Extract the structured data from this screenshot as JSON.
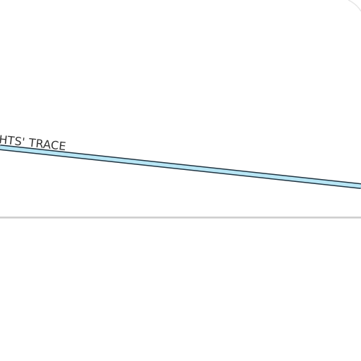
{
  "map": {
    "background": "#ffffff",
    "roads": [
      {
        "name_label": "HTS' TRACE",
        "casing_color": "#1f3340",
        "fill_color": "#b8e6f5"
      }
    ],
    "minor_road_color": "#cccccc",
    "corner_arc_color": "#e6e6e6"
  }
}
